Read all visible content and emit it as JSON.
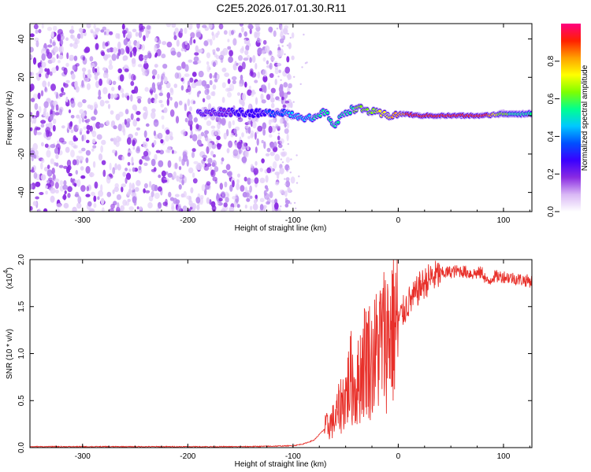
{
  "page_title": "C2E5.2026.017.01.30.R11",
  "chart_data": [
    {
      "type": "heatmap",
      "name": "spectrogram",
      "xlabel": "Height of straight line (km)",
      "ylabel": "Frequency (Hz)",
      "xlim": [
        -350,
        127
      ],
      "ylim": [
        -50,
        48
      ],
      "xticks": [
        -300,
        -200,
        -100,
        0,
        100
      ],
      "yticks": [
        -40,
        -20,
        0,
        20,
        40
      ],
      "colorbar": {
        "label": "Normalized spectral amplitude",
        "range": [
          0,
          1
        ],
        "ticks": [
          "0.0",
          "0.2",
          "0.4",
          "0.6",
          "0.8"
        ],
        "colors": [
          "#ffffff",
          "#d9b8f5",
          "#8a2be2",
          "#3a00ff",
          "#0050ff",
          "#00c8ff",
          "#00ff90",
          "#7fff00",
          "#ffff00",
          "#ffa000",
          "#ff2000",
          "#ff0080"
        ]
      },
      "noise_region_x": [
        -350,
        -110
      ],
      "signal_trace": [
        {
          "x": -190,
          "y": 1,
          "amp": 0.2
        },
        {
          "x": -170,
          "y": 2,
          "amp": 0.2
        },
        {
          "x": -150,
          "y": 2,
          "amp": 0.25
        },
        {
          "x": -130,
          "y": 1,
          "amp": 0.3
        },
        {
          "x": -110,
          "y": 2,
          "amp": 0.4
        },
        {
          "x": -95,
          "y": 0,
          "amp": 0.45
        },
        {
          "x": -80,
          "y": -2,
          "amp": 0.5
        },
        {
          "x": -70,
          "y": 2,
          "amp": 0.5
        },
        {
          "x": -60,
          "y": -5,
          "amp": 0.5
        },
        {
          "x": -50,
          "y": 2,
          "amp": 0.55
        },
        {
          "x": -40,
          "y": 4,
          "amp": 0.6
        },
        {
          "x": -25,
          "y": 2,
          "amp": 0.65
        },
        {
          "x": -10,
          "y": 0,
          "amp": 0.75
        },
        {
          "x": 5,
          "y": 1,
          "amp": 0.85
        },
        {
          "x": 20,
          "y": 0,
          "amp": 0.95
        },
        {
          "x": 40,
          "y": 0,
          "amp": 0.95
        },
        {
          "x": 60,
          "y": 0,
          "amp": 0.95
        },
        {
          "x": 80,
          "y": 0,
          "amp": 0.95
        },
        {
          "x": 100,
          "y": 1,
          "amp": 0.6
        },
        {
          "x": 126,
          "y": 1,
          "amp": 0.55
        }
      ]
    },
    {
      "type": "line",
      "name": "snr",
      "xlabel": "Height of straight line (km)",
      "ylabel": "SNR (10 * v/v)",
      "scale_label": "(x10",
      "scale_exponent": "4",
      "scale_suffix": ")",
      "xlim": [
        -350,
        127
      ],
      "ylim": [
        0,
        2.0
      ],
      "xticks": [
        -300,
        -200,
        -100,
        0,
        100
      ],
      "yticks": [
        "0.0",
        "0.5",
        "1.0",
        "1.5",
        "2.0"
      ],
      "color": "#e8302a",
      "series": [
        {
          "name": "SNR",
          "x": [
            -350,
            -300,
            -250,
            -200,
            -150,
            -120,
            -100,
            -90,
            -80,
            -70,
            -60,
            -55,
            -50,
            -45,
            -40,
            -35,
            -30,
            -25,
            -20,
            -15,
            -10,
            -5,
            0,
            5,
            10,
            15,
            20,
            25,
            30,
            35,
            40,
            50,
            60,
            70,
            80,
            85,
            90,
            100,
            110,
            120,
            126
          ],
          "y": [
            0.01,
            0.01,
            0.01,
            0.01,
            0.01,
            0.015,
            0.02,
            0.04,
            0.08,
            0.2,
            0.3,
            0.45,
            0.55,
            0.75,
            0.6,
            0.85,
            1.0,
            0.9,
            1.05,
            1.15,
            1.2,
            1.3,
            1.35,
            1.45,
            1.55,
            1.6,
            1.7,
            1.75,
            1.8,
            1.82,
            1.85,
            1.87,
            1.88,
            1.85,
            1.86,
            1.75,
            1.82,
            1.82,
            1.8,
            1.78,
            1.77
          ]
        }
      ]
    }
  ]
}
